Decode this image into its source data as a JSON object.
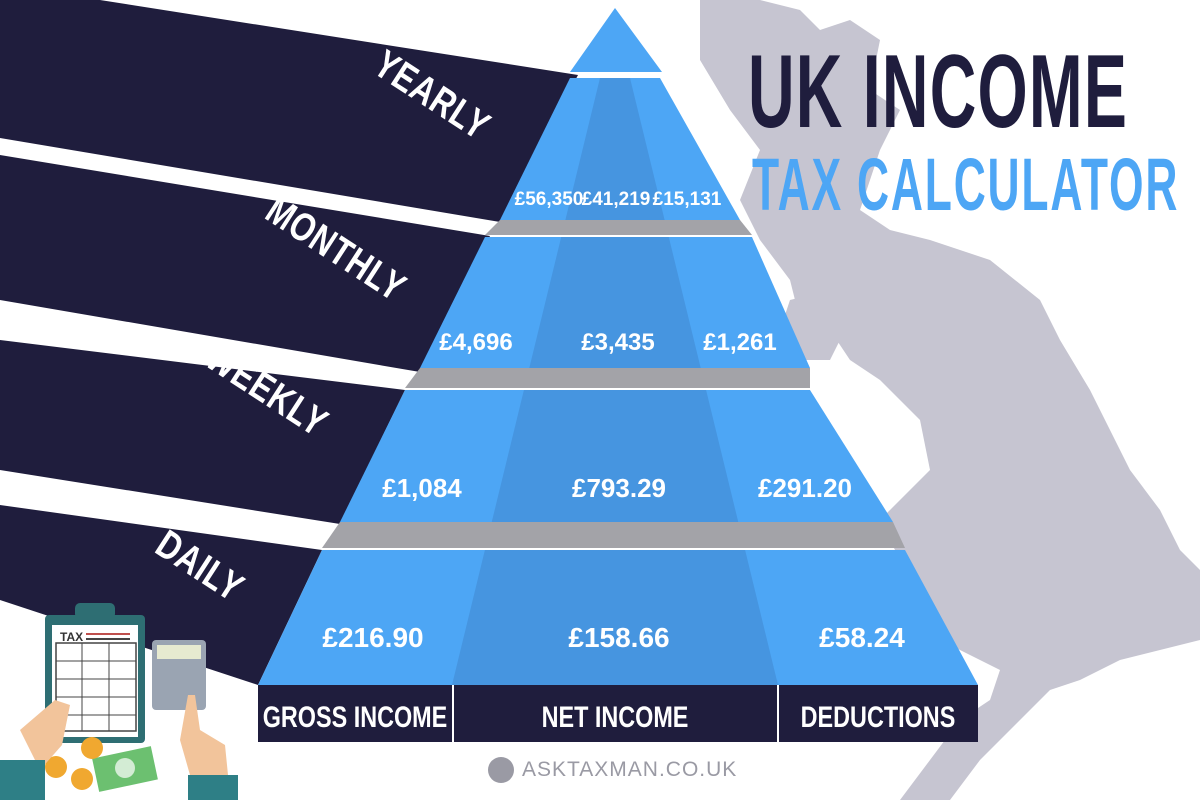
{
  "title": {
    "line1": "UK INCOME",
    "line2": "TAX CALCULATOR"
  },
  "periods": [
    "YEARLY",
    "MONTHLY",
    "WEEKLY",
    "DAILY"
  ],
  "columns": [
    "GROSS INCOME",
    "NET INCOME",
    "DEDUCTIONS"
  ],
  "values": {
    "yearly": [
      "£56,350",
      "£41,219",
      "£15,131"
    ],
    "monthly": [
      "£4,696",
      "£3,435",
      "£1,261"
    ],
    "weekly": [
      "£1,084",
      "£793.29",
      "£291.20"
    ],
    "daily": [
      "£216.90",
      "£158.66",
      "£58.24"
    ]
  },
  "illustration": {
    "label": "TAX"
  },
  "website": "ASKTAXMAN.CO.UK",
  "colors": {
    "navy": "#1f1d3d",
    "blue": "#4da6f5",
    "blue_dark": "#4695e0",
    "gray": "#a3a3a8",
    "map": "#c6c5d1"
  }
}
